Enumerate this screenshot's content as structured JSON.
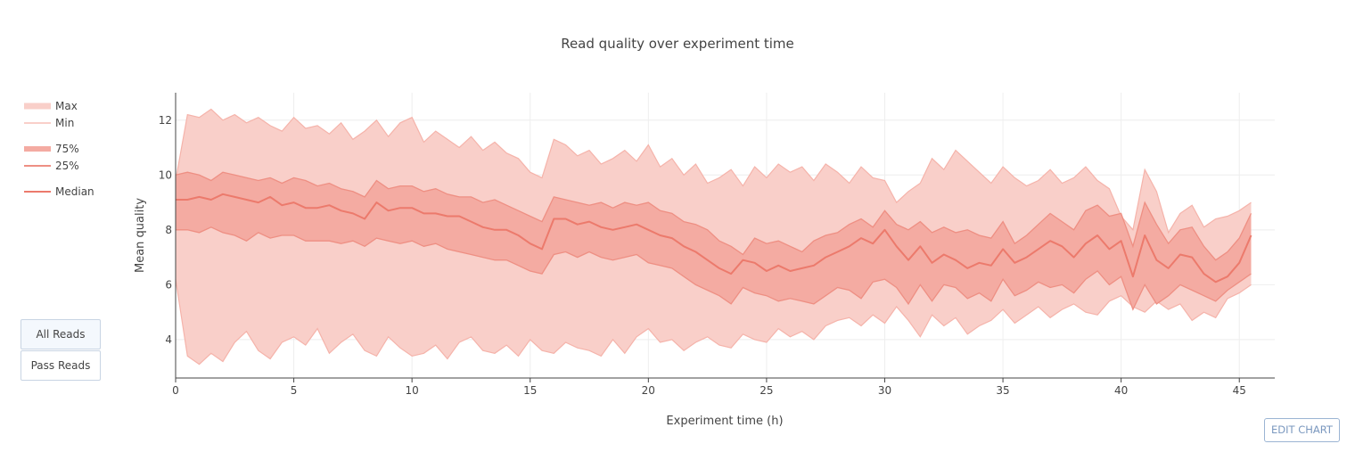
{
  "chart_data": {
    "type": "area",
    "title": "Read quality over experiment time",
    "xlabel": "Experiment time (h)",
    "ylabel": "Mean quality",
    "xlim": [
      0,
      46.5
    ],
    "ylim": [
      2.6,
      13.0
    ],
    "xticks": [
      0,
      5,
      10,
      15,
      20,
      25,
      30,
      35,
      40,
      45
    ],
    "yticks": [
      4,
      6,
      8,
      10,
      12
    ],
    "grid": true,
    "legend_position": "left",
    "x": [
      0,
      0.5,
      1,
      1.5,
      2,
      2.5,
      3,
      3.5,
      4,
      4.5,
      5,
      5.5,
      6,
      6.5,
      7,
      7.5,
      8,
      8.5,
      9,
      9.5,
      10,
      10.5,
      11,
      11.5,
      12,
      12.5,
      13,
      13.5,
      14,
      14.5,
      15,
      15.5,
      16,
      16.5,
      17,
      17.5,
      18,
      18.5,
      19,
      19.5,
      20,
      20.5,
      21,
      21.5,
      22,
      22.5,
      23,
      23.5,
      24,
      24.5,
      25,
      25.5,
      26,
      26.5,
      27,
      27.5,
      28,
      28.5,
      29,
      29.5,
      30,
      30.5,
      31,
      31.5,
      32,
      32.5,
      33,
      33.5,
      34,
      34.5,
      35,
      35.5,
      36,
      36.5,
      37,
      37.5,
      38,
      38.5,
      39,
      39.5,
      40,
      40.5,
      41,
      41.5,
      42,
      42.5,
      43,
      43.5,
      44,
      44.5,
      45,
      45.5
    ],
    "series": [
      {
        "name": "Max",
        "values": [
          9.8,
          12.2,
          12.1,
          12.4,
          12.0,
          12.2,
          11.9,
          12.1,
          11.8,
          11.6,
          12.1,
          11.7,
          11.8,
          11.5,
          11.9,
          11.3,
          11.6,
          12.0,
          11.4,
          11.9,
          12.1,
          11.2,
          11.6,
          11.3,
          11.0,
          11.4,
          10.9,
          11.2,
          10.8,
          10.6,
          10.1,
          9.9,
          11.3,
          11.1,
          10.7,
          10.9,
          10.4,
          10.6,
          10.9,
          10.5,
          11.1,
          10.3,
          10.6,
          10.0,
          10.4,
          9.7,
          9.9,
          10.2,
          9.6,
          10.3,
          9.9,
          10.4,
          10.1,
          10.3,
          9.8,
          10.4,
          10.1,
          9.7,
          10.3,
          9.9,
          9.8,
          9.0,
          9.4,
          9.7,
          10.6,
          10.2,
          10.9,
          10.5,
          10.1,
          9.7,
          10.3,
          9.9,
          9.6,
          9.8,
          10.2,
          9.7,
          9.9,
          10.3,
          9.8,
          9.5,
          8.5,
          8.0,
          10.2,
          9.4,
          7.9,
          8.6,
          8.9,
          8.1,
          8.4,
          8.5,
          8.7,
          9.0
        ]
      },
      {
        "name": "Min",
        "values": [
          6.2,
          3.4,
          3.1,
          3.5,
          3.2,
          3.9,
          4.3,
          3.6,
          3.3,
          3.9,
          4.1,
          3.8,
          4.4,
          3.5,
          3.9,
          4.2,
          3.6,
          3.4,
          4.1,
          3.7,
          3.4,
          3.5,
          3.8,
          3.3,
          3.9,
          4.1,
          3.6,
          3.5,
          3.8,
          3.4,
          4.0,
          3.6,
          3.5,
          3.9,
          3.7,
          3.6,
          3.4,
          4.0,
          3.5,
          4.1,
          4.4,
          3.9,
          4.0,
          3.6,
          3.9,
          4.1,
          3.8,
          3.7,
          4.2,
          4.0,
          3.9,
          4.4,
          4.1,
          4.3,
          4.0,
          4.5,
          4.7,
          4.8,
          4.5,
          4.9,
          4.6,
          5.2,
          4.7,
          4.1,
          4.9,
          4.5,
          4.8,
          4.2,
          4.5,
          4.7,
          5.1,
          4.6,
          4.9,
          5.2,
          4.8,
          5.1,
          5.3,
          5.0,
          4.9,
          5.4,
          5.6,
          5.2,
          5.0,
          5.4,
          5.1,
          5.3,
          4.7,
          5.0,
          4.8,
          5.5,
          5.7,
          6.0
        ]
      },
      {
        "name": "75%",
        "values": [
          10.0,
          10.1,
          10.0,
          9.8,
          10.1,
          10.0,
          9.9,
          9.8,
          9.9,
          9.7,
          9.9,
          9.8,
          9.6,
          9.7,
          9.5,
          9.4,
          9.2,
          9.8,
          9.5,
          9.6,
          9.6,
          9.4,
          9.5,
          9.3,
          9.2,
          9.2,
          9.0,
          9.1,
          8.9,
          8.7,
          8.5,
          8.3,
          9.2,
          9.1,
          9.0,
          8.9,
          9.0,
          8.8,
          9.0,
          8.9,
          9.0,
          8.7,
          8.6,
          8.3,
          8.2,
          8.0,
          7.6,
          7.4,
          7.1,
          7.7,
          7.5,
          7.6,
          7.4,
          7.2,
          7.6,
          7.8,
          7.9,
          8.2,
          8.4,
          8.1,
          8.7,
          8.2,
          8.0,
          8.3,
          7.9,
          8.1,
          7.9,
          8.0,
          7.8,
          7.7,
          8.3,
          7.5,
          7.8,
          8.2,
          8.6,
          8.3,
          8.0,
          8.7,
          8.9,
          8.5,
          8.6,
          7.4,
          9.0,
          8.2,
          7.5,
          8.0,
          8.1,
          7.4,
          6.9,
          7.2,
          7.7,
          8.6
        ]
      },
      {
        "name": "25%",
        "values": [
          8.0,
          8.0,
          7.9,
          8.1,
          7.9,
          7.8,
          7.6,
          7.9,
          7.7,
          7.8,
          7.8,
          7.6,
          7.6,
          7.6,
          7.5,
          7.6,
          7.4,
          7.7,
          7.6,
          7.5,
          7.6,
          7.4,
          7.5,
          7.3,
          7.2,
          7.1,
          7.0,
          6.9,
          6.9,
          6.7,
          6.5,
          6.4,
          7.1,
          7.2,
          7.0,
          7.2,
          7.0,
          6.9,
          7.0,
          7.1,
          6.8,
          6.7,
          6.6,
          6.3,
          6.0,
          5.8,
          5.6,
          5.3,
          5.9,
          5.7,
          5.6,
          5.4,
          5.5,
          5.4,
          5.3,
          5.6,
          5.9,
          5.8,
          5.5,
          6.1,
          6.2,
          5.9,
          5.3,
          6.0,
          5.4,
          6.0,
          5.9,
          5.5,
          5.7,
          5.4,
          6.2,
          5.6,
          5.8,
          6.1,
          5.9,
          6.0,
          5.7,
          6.2,
          6.5,
          6.0,
          6.3,
          5.1,
          6.0,
          5.3,
          5.6,
          6.0,
          5.8,
          5.6,
          5.4,
          5.8,
          6.1,
          6.4
        ]
      },
      {
        "name": "Median",
        "values": [
          9.1,
          9.1,
          9.2,
          9.1,
          9.3,
          9.2,
          9.1,
          9.0,
          9.2,
          8.9,
          9.0,
          8.8,
          8.8,
          8.9,
          8.7,
          8.6,
          8.4,
          9.0,
          8.7,
          8.8,
          8.8,
          8.6,
          8.6,
          8.5,
          8.5,
          8.3,
          8.1,
          8.0,
          8.0,
          7.8,
          7.5,
          7.3,
          8.4,
          8.4,
          8.2,
          8.3,
          8.1,
          8.0,
          8.1,
          8.2,
          8.0,
          7.8,
          7.7,
          7.4,
          7.2,
          6.9,
          6.6,
          6.4,
          6.9,
          6.8,
          6.5,
          6.7,
          6.5,
          6.6,
          6.7,
          7.0,
          7.2,
          7.4,
          7.7,
          7.5,
          8.0,
          7.4,
          6.9,
          7.4,
          6.8,
          7.1,
          6.9,
          6.6,
          6.8,
          6.7,
          7.3,
          6.8,
          7.0,
          7.3,
          7.6,
          7.4,
          7.0,
          7.5,
          7.8,
          7.3,
          7.6,
          6.3,
          7.8,
          6.9,
          6.6,
          7.1,
          7.0,
          6.4,
          6.1,
          6.3,
          6.8,
          7.8
        ]
      }
    ]
  },
  "buttons": {
    "all_reads": "All Reads",
    "pass_reads": "Pass Reads",
    "edit_chart": "EDIT CHART"
  },
  "colors": {
    "outer_band": "#f9cfc9",
    "outer_band_edge": "#f5b3aa",
    "inner_band": "#f4aba2",
    "inner_band_edge": "#ee8f83",
    "median_line": "#ec7a6c",
    "grid": "#eeeeee"
  }
}
